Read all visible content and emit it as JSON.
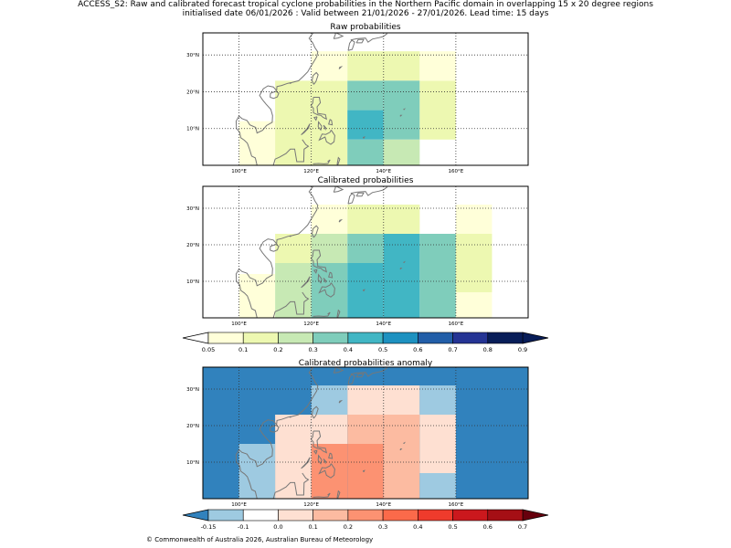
{
  "header": {
    "title_line1": "ACCESS_S2: Raw and calibrated forecast tropical cyclone probabilities in the Northern Pacific domain in overlapping 15 x 20 degree regions",
    "title_line2": "initialised date 06/01/2026 :  Valid between 21/01/2026 - 27/01/2026. Lead time: 15 days"
  },
  "footer": {
    "copyright": "© Commonwealth of Australia 2026, Australian Bureau of Meteorology"
  },
  "colors": {
    "land_outline": "#777777",
    "grid": "#333333",
    "prob_scale": [
      "#ffffd9",
      "#edf8b1",
      "#c7e9b4",
      "#7fcdbb",
      "#41b6c4",
      "#1d91c0",
      "#225ea8",
      "#253494",
      "#081d58"
    ],
    "prob_under": "#ffffff",
    "anom_scale": [
      "#9ecae1",
      "#ffffff",
      "#fee0d2",
      "#fcbba1",
      "#fc9272",
      "#fb6a4a",
      "#ef3b2c",
      "#cb181d",
      "#a50f15"
    ],
    "anom_under": "#3182bd",
    "anom_over": "#67000d"
  },
  "chart_data": [
    {
      "type": "heatmap",
      "title": "Raw probabilities",
      "x_range": [
        90,
        180
      ],
      "y_range": [
        0,
        36
      ],
      "x_ticks": [
        100,
        120,
        140,
        160
      ],
      "x_tick_labels": [
        "100°E",
        "120°E",
        "140°E",
        "160°E"
      ],
      "y_ticks": [
        10,
        20,
        30
      ],
      "y_tick_labels": [
        "10°N",
        "20°N",
        "30°N"
      ],
      "cells": [
        {
          "lon": [
            100,
            110
          ],
          "lat": [
            0,
            12
          ],
          "value": 0.08
        },
        {
          "lon": [
            110,
            120
          ],
          "lat": [
            0,
            23
          ],
          "value": 0.15
        },
        {
          "lon": [
            120,
            130
          ],
          "lat": [
            0,
            23
          ],
          "value": 0.15
        },
        {
          "lon": [
            120,
            130
          ],
          "lat": [
            23,
            31
          ],
          "value": 0.08
        },
        {
          "lon": [
            130,
            140
          ],
          "lat": [
            7,
            15
          ],
          "value": 0.42
        },
        {
          "lon": [
            130,
            140
          ],
          "lat": [
            15,
            23
          ],
          "value": 0.35
        },
        {
          "lon": [
            130,
            140
          ],
          "lat": [
            0,
            7
          ],
          "value": 0.35
        },
        {
          "lon": [
            130,
            150
          ],
          "lat": [
            23,
            31
          ],
          "value": 0.15
        },
        {
          "lon": [
            140,
            150
          ],
          "lat": [
            7,
            23
          ],
          "value": 0.35
        },
        {
          "lon": [
            140,
            150
          ],
          "lat": [
            0,
            7
          ],
          "value": 0.25
        },
        {
          "lon": [
            150,
            160
          ],
          "lat": [
            7,
            23
          ],
          "value": 0.15
        },
        {
          "lon": [
            150,
            160
          ],
          "lat": [
            23,
            31
          ],
          "value": 0.08
        }
      ]
    },
    {
      "type": "heatmap",
      "title": "Calibrated probabilities",
      "x_range": [
        90,
        180
      ],
      "y_range": [
        0,
        36
      ],
      "x_ticks": [
        100,
        120,
        140,
        160
      ],
      "x_tick_labels": [
        "100°E",
        "120°E",
        "140°E",
        "160°E"
      ],
      "y_ticks": [
        10,
        20,
        30
      ],
      "y_tick_labels": [
        "10°N",
        "20°N",
        "30°N"
      ],
      "cells": [
        {
          "lon": [
            100,
            110
          ],
          "lat": [
            0,
            12
          ],
          "value": 0.08
        },
        {
          "lon": [
            110,
            120
          ],
          "lat": [
            0,
            15
          ],
          "value": 0.25
        },
        {
          "lon": [
            110,
            120
          ],
          "lat": [
            15,
            23
          ],
          "value": 0.15
        },
        {
          "lon": [
            120,
            130
          ],
          "lat": [
            0,
            15
          ],
          "value": 0.35
        },
        {
          "lon": [
            120,
            130
          ],
          "lat": [
            15,
            23
          ],
          "value": 0.25
        },
        {
          "lon": [
            120,
            130
          ],
          "lat": [
            23,
            31
          ],
          "value": 0.08
        },
        {
          "lon": [
            130,
            140
          ],
          "lat": [
            0,
            15
          ],
          "value": 0.42
        },
        {
          "lon": [
            130,
            140
          ],
          "lat": [
            15,
            23
          ],
          "value": 0.35
        },
        {
          "lon": [
            140,
            150
          ],
          "lat": [
            0,
            15
          ],
          "value": 0.45
        },
        {
          "lon": [
            140,
            150
          ],
          "lat": [
            15,
            23
          ],
          "value": 0.42
        },
        {
          "lon": [
            130,
            150
          ],
          "lat": [
            23,
            31
          ],
          "value": 0.15
        },
        {
          "lon": [
            150,
            160
          ],
          "lat": [
            0,
            23
          ],
          "value": 0.35
        },
        {
          "lon": [
            160,
            170
          ],
          "lat": [
            7,
            23
          ],
          "value": 0.15
        },
        {
          "lon": [
            160,
            170
          ],
          "lat": [
            0,
            7
          ],
          "value": 0.08
        },
        {
          "lon": [
            160,
            170
          ],
          "lat": [
            23,
            31
          ],
          "value": 0.08
        }
      ]
    },
    {
      "type": "heatmap",
      "title": "Calibrated probabilities anomaly",
      "x_range": [
        90,
        180
      ],
      "y_range": [
        0,
        36
      ],
      "x_ticks": [
        100,
        120,
        140,
        160
      ],
      "x_tick_labels": [
        "100°E",
        "120°E",
        "140°E",
        "160°E"
      ],
      "y_ticks": [
        10,
        20,
        30
      ],
      "y_tick_labels": [
        "10°N",
        "20°N",
        "30°N"
      ],
      "background_value": -0.2,
      "cells": [
        {
          "lon": [
            100,
            110
          ],
          "lat": [
            0,
            15
          ],
          "value": -0.12
        },
        {
          "lon": [
            110,
            120
          ],
          "lat": [
            0,
            15
          ],
          "value": 0.05
        },
        {
          "lon": [
            110,
            120
          ],
          "lat": [
            15,
            23
          ],
          "value": 0.0
        },
        {
          "lon": [
            120,
            130
          ],
          "lat": [
            0,
            15
          ],
          "value": 0.22
        },
        {
          "lon": [
            120,
            130
          ],
          "lat": [
            15,
            23
          ],
          "value": 0.05
        },
        {
          "lon": [
            120,
            130
          ],
          "lat": [
            23,
            31
          ],
          "value": -0.12
        },
        {
          "lon": [
            130,
            140
          ],
          "lat": [
            0,
            15
          ],
          "value": 0.25
        },
        {
          "lon": [
            130,
            140
          ],
          "lat": [
            15,
            23
          ],
          "value": 0.15
        },
        {
          "lon": [
            140,
            150
          ],
          "lat": [
            0,
            23
          ],
          "value": 0.15
        },
        {
          "lon": [
            130,
            150
          ],
          "lat": [
            23,
            31
          ],
          "value": 0.0
        },
        {
          "lon": [
            150,
            160
          ],
          "lat": [
            7,
            23
          ],
          "value": 0.0
        },
        {
          "lon": [
            150,
            160
          ],
          "lat": [
            0,
            7
          ],
          "value": -0.12
        },
        {
          "lon": [
            150,
            160
          ],
          "lat": [
            23,
            31
          ],
          "value": -0.12
        }
      ]
    }
  ],
  "colorbars": [
    {
      "levels": [
        0.05,
        0.1,
        0.2,
        0.3,
        0.4,
        0.5,
        0.6,
        0.7,
        0.8,
        0.9
      ],
      "labels": [
        "0.05",
        "0.1",
        "0.2",
        "0.3",
        "0.4",
        "0.5",
        "0.6",
        "0.7",
        "0.8",
        "0.9"
      ]
    },
    {
      "levels": [
        -0.15,
        -0.1,
        0.0,
        0.1,
        0.2,
        0.3,
        0.4,
        0.5,
        0.6,
        0.7
      ],
      "labels": [
        "-0.15",
        "-0.1",
        "0.0",
        "0.1",
        "0.2",
        "0.3",
        "0.4",
        "0.5",
        "0.6",
        "0.7"
      ]
    }
  ]
}
